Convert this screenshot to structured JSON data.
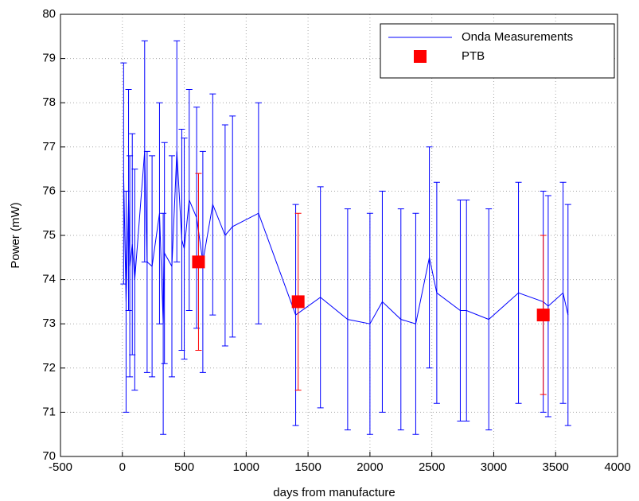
{
  "chart_data": {
    "type": "errorbar",
    "x_label": "days from manufacture",
    "y_label": "Power (mW)",
    "xlim": [
      -500,
      4000
    ],
    "xticks": [
      -500,
      0,
      500,
      1000,
      1500,
      2000,
      2500,
      3000,
      3500,
      4000
    ],
    "ylim": [
      70,
      80
    ],
    "yticks": [
      70,
      71,
      72,
      73,
      74,
      75,
      76,
      77,
      78,
      79,
      80
    ],
    "grid": true,
    "legend": "upper right",
    "series": [
      {
        "name": "Onda Measurements",
        "color": "#0000ff",
        "marker": "none",
        "x": [
          10,
          30,
          50,
          60,
          80,
          100,
          180,
          200,
          240,
          300,
          330,
          340,
          400,
          440,
          480,
          500,
          540,
          600,
          650,
          730,
          830,
          890,
          1100,
          1400,
          1600,
          1820,
          2000,
          2100,
          2250,
          2370,
          2480,
          2540,
          2730,
          2780,
          2960,
          3200,
          3400,
          3440,
          3560,
          3600
        ],
        "values": [
          76.4,
          73.5,
          75.8,
          74.3,
          74.8,
          74.0,
          76.9,
          74.4,
          74.3,
          75.5,
          73.0,
          74.6,
          74.3,
          76.9,
          74.9,
          74.7,
          75.8,
          75.4,
          74.4,
          75.7,
          75.0,
          75.2,
          75.5,
          73.2,
          73.6,
          73.1,
          73.0,
          73.5,
          73.1,
          73.0,
          74.5,
          73.7,
          73.3,
          73.3,
          73.1,
          73.7,
          73.5,
          73.4,
          73.7,
          73.2
        ],
        "errors": [
          2.5,
          2.5,
          2.5,
          2.5,
          2.5,
          2.5,
          2.5,
          2.5,
          2.5,
          2.5,
          2.5,
          2.5,
          2.5,
          2.5,
          2.5,
          2.5,
          2.5,
          2.5,
          2.5,
          2.5,
          2.5,
          2.5,
          2.5,
          2.5,
          2.5,
          2.5,
          2.5,
          2.5,
          2.5,
          2.5,
          2.5,
          2.5,
          2.5,
          2.5,
          2.5,
          2.5,
          2.5,
          2.5,
          2.5,
          2.5
        ]
      },
      {
        "name": "PTB",
        "color": "#ff0000",
        "marker": "square",
        "x": [
          615,
          1420,
          3400
        ],
        "values": [
          74.4,
          73.5,
          73.2
        ],
        "errors": [
          2.0,
          2.0,
          1.8
        ]
      }
    ]
  }
}
